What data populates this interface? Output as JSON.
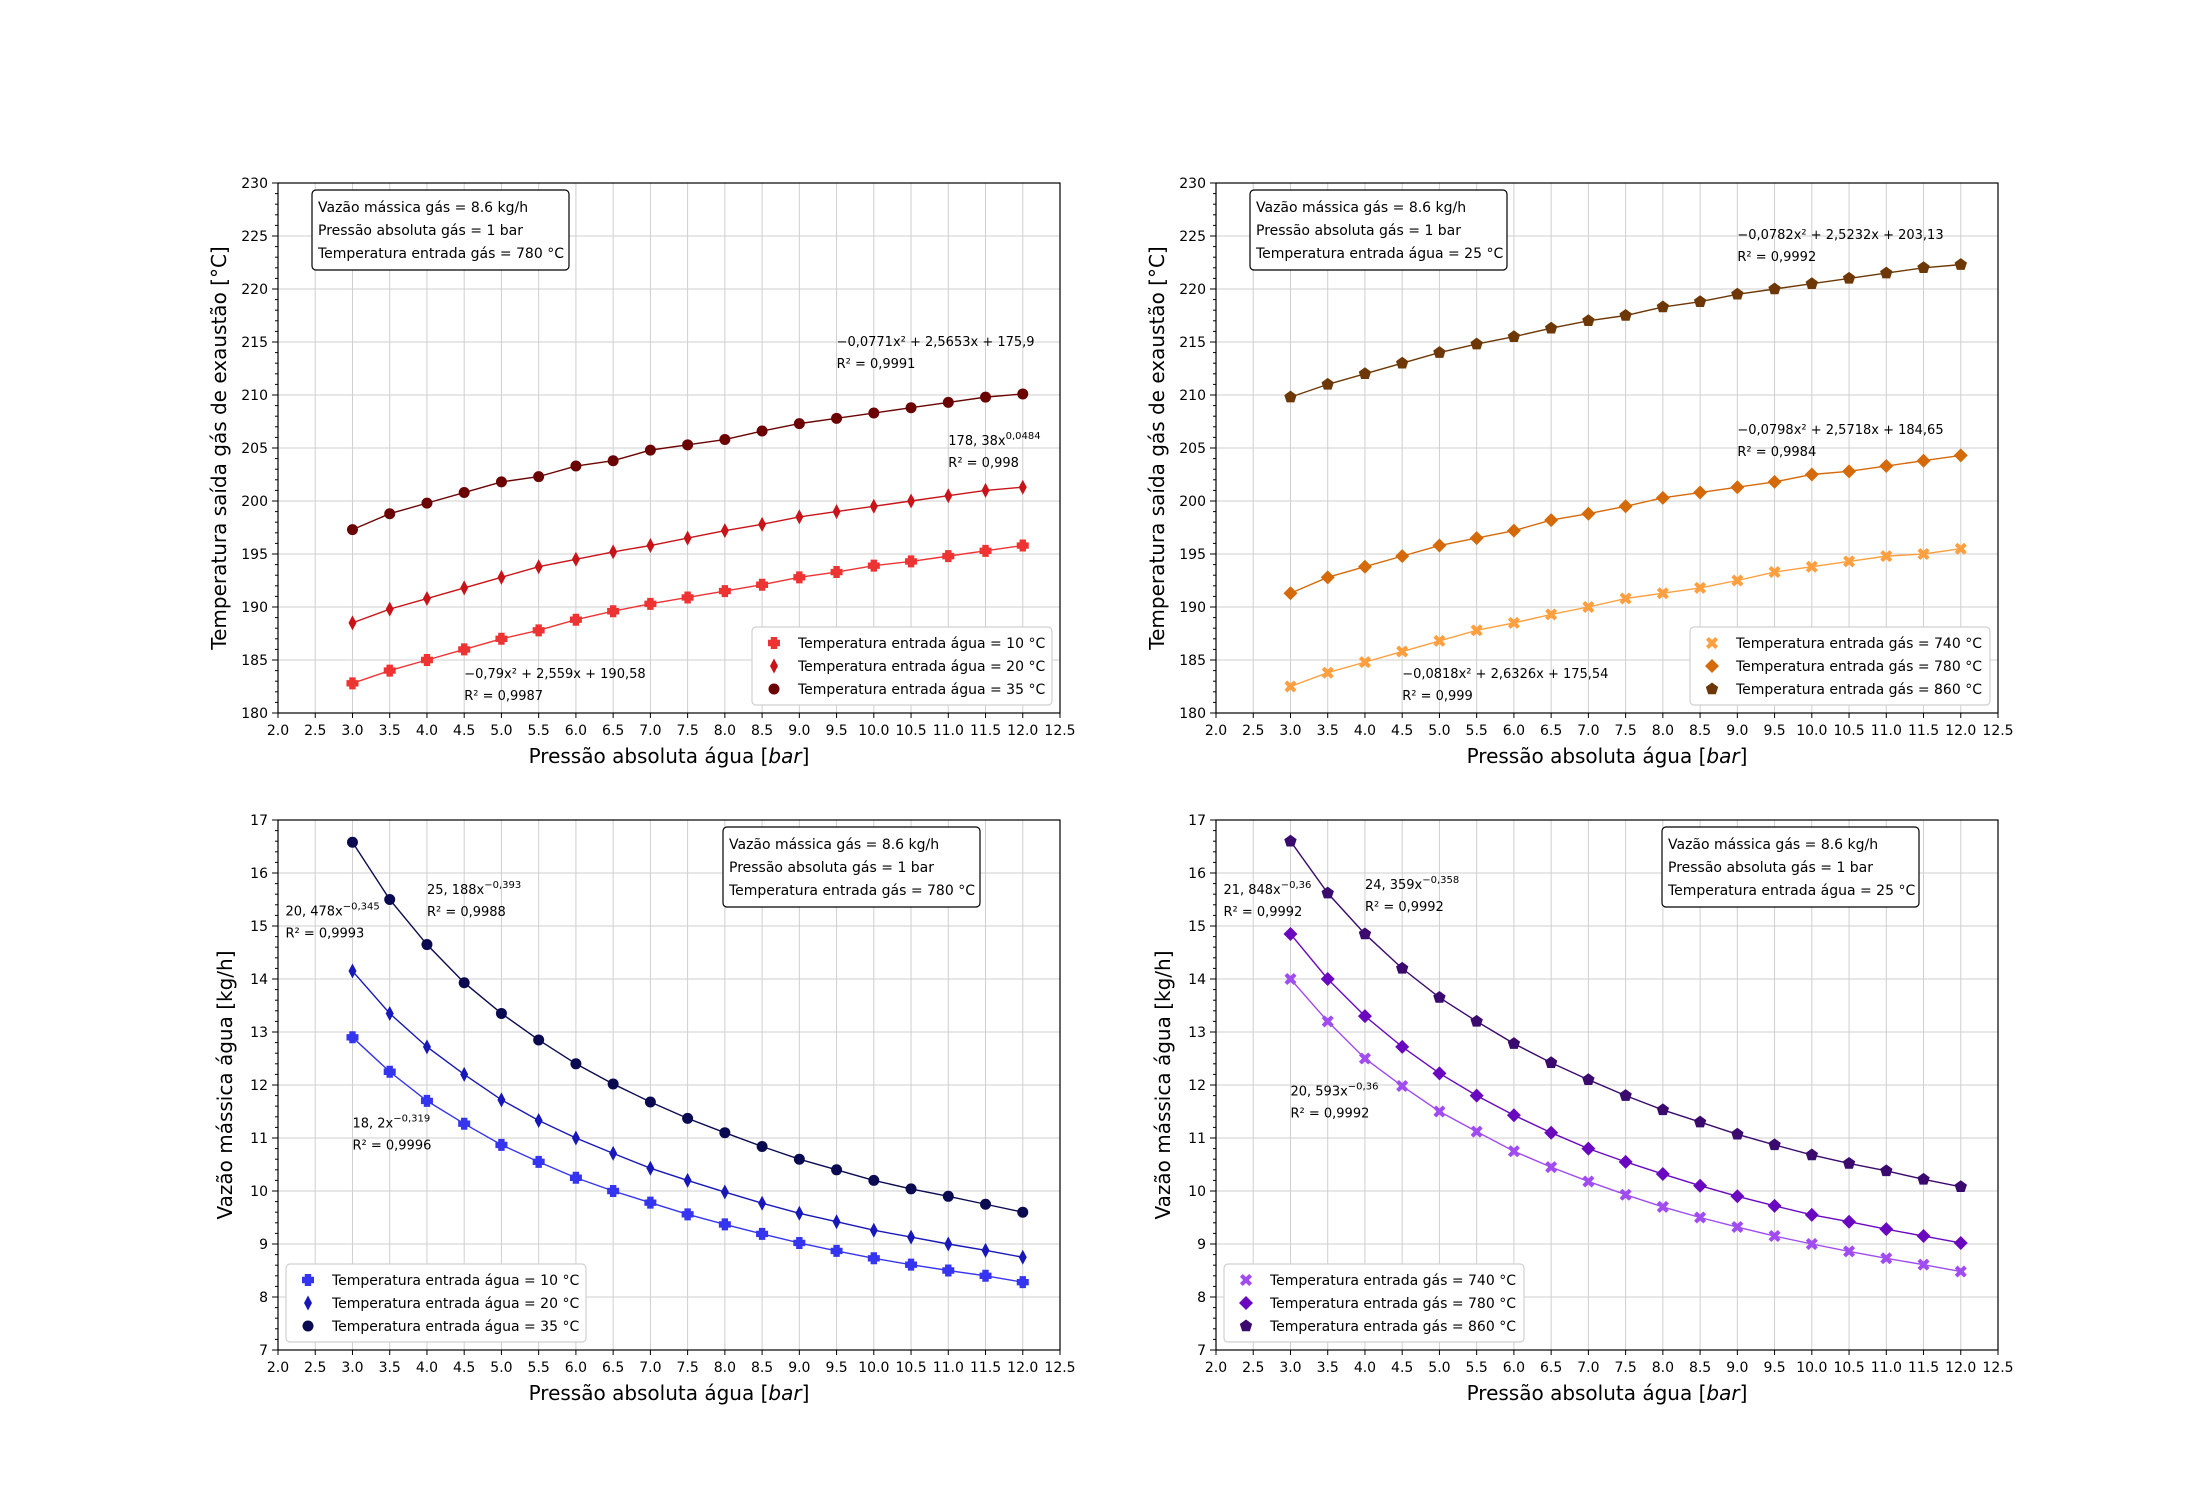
{
  "chart_data": [
    {
      "type": "line",
      "xlabel": "Pressão absoluta água [bar]",
      "ylabel": "Temperatura saída gás de exaustão [°C]",
      "xlim": [
        2.0,
        12.5
      ],
      "ylim": [
        180,
        230
      ],
      "xticks": [
        "2.0",
        "2.5",
        "3.0",
        "3.5",
        "4.0",
        "4.5",
        "5.0",
        "5.5",
        "6.0",
        "6.5",
        "7.0",
        "7.5",
        "8.0",
        "8.5",
        "9.0",
        "9.5",
        "10.0",
        "10.5",
        "11.0",
        "11.5",
        "12.0",
        "12.5"
      ],
      "yticks": [
        "180",
        "185",
        "190",
        "195",
        "200",
        "205",
        "210",
        "215",
        "220",
        "225",
        "230"
      ],
      "grid": true,
      "legend_position": "lower-right",
      "info": [
        "Vazão mássica gás = 8.6 kg/h",
        "Pressão absoluta gás = 1 bar",
        "Temperatura entrada gás = 780 °C"
      ],
      "x": [
        3.0,
        3.5,
        4.0,
        4.5,
        5.0,
        5.5,
        6.0,
        6.5,
        7.0,
        7.5,
        8.0,
        8.5,
        9.0,
        9.5,
        10.0,
        10.5,
        11.0,
        11.5,
        12.0
      ],
      "series": [
        {
          "name": "Temperatura entrada água = 10 °C",
          "color": "#ee3333",
          "marker": "plus",
          "values": [
            182.8,
            184.0,
            185.0,
            186.0,
            187.0,
            187.8,
            188.8,
            189.6,
            190.3,
            190.9,
            191.5,
            192.1,
            192.8,
            193.3,
            193.9,
            194.3,
            194.8,
            195.3,
            195.8
          ]
        },
        {
          "name": "Temperatura entrada água = 20 °C",
          "color": "#c81418",
          "marker": "thin-diamond",
          "values": [
            188.5,
            189.8,
            190.8,
            191.8,
            192.8,
            193.8,
            194.5,
            195.2,
            195.8,
            196.5,
            197.2,
            197.8,
            198.5,
            199.0,
            199.5,
            200.0,
            200.5,
            201.0,
            201.3
          ]
        },
        {
          "name": "Temperatura entrada água = 35 °C",
          "color": "#6b0303",
          "marker": "circle",
          "values": [
            197.3,
            198.8,
            199.8,
            200.8,
            201.8,
            202.3,
            203.3,
            203.8,
            204.8,
            205.3,
            205.8,
            206.6,
            207.3,
            207.8,
            208.3,
            208.8,
            209.3,
            209.8,
            210.1
          ]
        }
      ],
      "annotations": [
        {
          "lines": [
            "−0,0771x² + 2,5653x + 175,9",
            "R² = 0,9991"
          ],
          "x": 9.5,
          "y": 214.6
        },
        {
          "lines": [
            "178, 38x^0,0484",
            "R² = 0,998"
          ],
          "x": 11.0,
          "y": 205.3
        },
        {
          "lines": [
            "−0,79x² + 2,559x + 190,58",
            "R² = 0,9987"
          ],
          "x": 4.5,
          "y": 183.3
        }
      ]
    },
    {
      "type": "line",
      "xlabel": "Pressão absoluta água [bar]",
      "ylabel": "Temperatura saída gás de exaustão [°C]",
      "xlim": [
        2.0,
        12.5
      ],
      "ylim": [
        180,
        230
      ],
      "xticks": [
        "2.0",
        "2.5",
        "3.0",
        "3.5",
        "4.0",
        "4.5",
        "5.0",
        "5.5",
        "6.0",
        "6.5",
        "7.0",
        "7.5",
        "8.0",
        "8.5",
        "9.0",
        "9.5",
        "10.0",
        "10.5",
        "11.0",
        "11.5",
        "12.0",
        "12.5"
      ],
      "yticks": [
        "180",
        "185",
        "190",
        "195",
        "200",
        "205",
        "210",
        "215",
        "220",
        "225",
        "230"
      ],
      "grid": true,
      "legend_position": "lower-right",
      "info": [
        "Vazão mássica gás = 8.6 kg/h",
        "Pressão absoluta gás = 1 bar",
        "Temperatura entrada água = 25 °C"
      ],
      "x": [
        3.0,
        3.5,
        4.0,
        4.5,
        5.0,
        5.5,
        6.0,
        6.5,
        7.0,
        7.5,
        8.0,
        8.5,
        9.0,
        9.5,
        10.0,
        10.5,
        11.0,
        11.5,
        12.0
      ],
      "series": [
        {
          "name": "Temperatura entrada gás = 740 °C",
          "color": "#ffa040",
          "marker": "x-cross",
          "values": [
            182.5,
            183.8,
            184.8,
            185.8,
            186.8,
            187.8,
            188.5,
            189.3,
            190.0,
            190.8,
            191.3,
            191.8,
            192.5,
            193.3,
            193.8,
            194.3,
            194.8,
            195.0,
            195.5
          ]
        },
        {
          "name": "Temperatura entrada gás = 780 °C",
          "color": "#d56a0a",
          "marker": "diamond",
          "values": [
            191.3,
            192.8,
            193.8,
            194.8,
            195.8,
            196.5,
            197.2,
            198.2,
            198.8,
            199.5,
            200.3,
            200.8,
            201.3,
            201.8,
            202.5,
            202.8,
            203.3,
            203.8,
            204.3
          ]
        },
        {
          "name": "Temperatura entrada gás = 860 °C",
          "color": "#6e3806",
          "marker": "pentagon",
          "values": [
            209.8,
            211.0,
            212.0,
            213.0,
            214.0,
            214.8,
            215.5,
            216.3,
            217.0,
            217.5,
            218.3,
            218.8,
            219.5,
            220.0,
            220.5,
            221.0,
            221.5,
            222.0,
            222.3
          ]
        }
      ],
      "annotations": [
        {
          "lines": [
            "−0,0782x² + 2,5232x + 203,13",
            "R² = 0,9992"
          ],
          "x": 9.0,
          "y": 224.7
        },
        {
          "lines": [
            "−0,0798x² + 2,5718x + 184,65",
            "R² = 0,9984"
          ],
          "x": 9.0,
          "y": 206.3
        },
        {
          "lines": [
            "−0,0818x² + 2,6326x + 175,54",
            "R² = 0,999"
          ],
          "x": 4.5,
          "y": 183.3
        }
      ]
    },
    {
      "type": "line",
      "xlabel": "Pressão absoluta água [bar]",
      "ylabel": "Vazão mássica água [kg/h]",
      "xlim": [
        2.0,
        12.5
      ],
      "ylim": [
        7,
        17
      ],
      "xticks": [
        "2.0",
        "2.5",
        "3.0",
        "3.5",
        "4.0",
        "4.5",
        "5.0",
        "5.5",
        "6.0",
        "6.5",
        "7.0",
        "7.5",
        "8.0",
        "8.5",
        "9.0",
        "9.5",
        "10.0",
        "10.5",
        "11.0",
        "11.5",
        "12.0",
        "12.5"
      ],
      "yticks": [
        "7",
        "8",
        "9",
        "10",
        "11",
        "12",
        "13",
        "14",
        "15",
        "16",
        "17"
      ],
      "grid": true,
      "legend_position": "lower-left",
      "info": [
        "Vazão mássica gás = 8.6 kg/h",
        "Pressão absoluta gás = 1 bar",
        "Temperatura entrada gás = 780 °C"
      ],
      "x": [
        3.0,
        3.5,
        4.0,
        4.5,
        5.0,
        5.5,
        6.0,
        6.5,
        7.0,
        7.5,
        8.0,
        8.5,
        9.0,
        9.5,
        10.0,
        10.5,
        11.0,
        11.5,
        12.0
      ],
      "series": [
        {
          "name": "Temperatura entrada água = 10 °C",
          "color": "#3535f0",
          "marker": "plus",
          "values": [
            12.9,
            12.25,
            11.7,
            11.27,
            10.87,
            10.55,
            10.25,
            10.0,
            9.78,
            9.56,
            9.37,
            9.19,
            9.02,
            8.87,
            8.73,
            8.61,
            8.5,
            8.4,
            8.28
          ]
        },
        {
          "name": "Temperatura entrada água = 20 °C",
          "color": "#1818b8",
          "marker": "thin-diamond",
          "values": [
            14.15,
            13.35,
            12.72,
            12.2,
            11.72,
            11.33,
            11.0,
            10.71,
            10.43,
            10.2,
            9.98,
            9.77,
            9.58,
            9.42,
            9.26,
            9.13,
            9.0,
            8.88,
            8.75
          ]
        },
        {
          "name": "Temperatura entrada água = 35 °C",
          "color": "#0a0a50",
          "marker": "circle",
          "values": [
            16.58,
            15.5,
            14.65,
            13.93,
            13.35,
            12.85,
            12.4,
            12.02,
            11.68,
            11.37,
            11.1,
            10.84,
            10.6,
            10.4,
            10.2,
            10.04,
            9.9,
            9.75,
            9.6
          ]
        }
      ],
      "annotations": [
        {
          "lines": [
            "20, 478x^−0,345",
            "R² = 0,9993"
          ],
          "x": 2.1,
          "y": 15.2
        },
        {
          "lines": [
            "25, 188x^−0,393",
            "R² = 0,9988"
          ],
          "x": 4.0,
          "y": 15.6
        },
        {
          "lines": [
            "18, 2x^−0,319",
            "R² = 0,9996"
          ],
          "x": 3.0,
          "y": 11.2
        }
      ]
    },
    {
      "type": "line",
      "xlabel": "Pressão absoluta água [bar]",
      "ylabel": "Vazão mássica água [kg/h]",
      "xlim": [
        2.0,
        12.5
      ],
      "ylim": [
        7,
        17
      ],
      "xticks": [
        "2.0",
        "2.5",
        "3.0",
        "3.5",
        "4.0",
        "4.5",
        "5.0",
        "5.5",
        "6.0",
        "6.5",
        "7.0",
        "7.5",
        "8.0",
        "8.5",
        "9.0",
        "9.5",
        "10.0",
        "10.5",
        "11.0",
        "11.5",
        "12.0",
        "12.5"
      ],
      "yticks": [
        "7",
        "8",
        "9",
        "10",
        "11",
        "12",
        "13",
        "14",
        "15",
        "16",
        "17"
      ],
      "grid": true,
      "legend_position": "lower-left",
      "info": [
        "Vazão mássica gás = 8.6 kg/h",
        "Pressão absoluta gás = 1 bar",
        "Temperatura entrada água = 25 °C"
      ],
      "x": [
        3.0,
        3.5,
        4.0,
        4.5,
        5.0,
        5.5,
        6.0,
        6.5,
        7.0,
        7.5,
        8.0,
        8.5,
        9.0,
        9.5,
        10.0,
        10.5,
        11.0,
        11.5,
        12.0
      ],
      "series": [
        {
          "name": "Temperatura entrada gás = 740 °C",
          "color": "#a04cf0",
          "marker": "x-cross",
          "values": [
            14.0,
            13.2,
            12.5,
            11.98,
            11.5,
            11.12,
            10.75,
            10.45,
            10.18,
            9.93,
            9.7,
            9.5,
            9.32,
            9.15,
            9.0,
            8.86,
            8.73,
            8.61,
            8.48
          ]
        },
        {
          "name": "Temperatura entrada gás = 780 °C",
          "color": "#6a08c0",
          "marker": "diamond",
          "values": [
            14.85,
            14.0,
            13.3,
            12.72,
            12.22,
            11.8,
            11.43,
            11.1,
            10.8,
            10.55,
            10.32,
            10.1,
            9.9,
            9.72,
            9.55,
            9.42,
            9.28,
            9.15,
            9.02
          ]
        },
        {
          "name": "Temperatura entrada gás = 860 °C",
          "color": "#3a0a6e",
          "marker": "pentagon",
          "values": [
            16.6,
            15.62,
            14.85,
            14.2,
            13.65,
            13.2,
            12.78,
            12.42,
            12.1,
            11.8,
            11.53,
            11.3,
            11.07,
            10.87,
            10.68,
            10.52,
            10.38,
            10.22,
            10.08
          ]
        }
      ],
      "annotations": [
        {
          "lines": [
            "21, 848x^−0,36",
            "R² = 0,9992"
          ],
          "x": 2.1,
          "y": 15.6
        },
        {
          "lines": [
            "24, 359x^−0,358",
            "R² = 0,9992"
          ],
          "x": 4.0,
          "y": 15.7
        },
        {
          "lines": [
            "20, 593x^−0,36",
            "R² = 0,9992"
          ],
          "x": 3.0,
          "y": 11.8
        }
      ]
    }
  ]
}
